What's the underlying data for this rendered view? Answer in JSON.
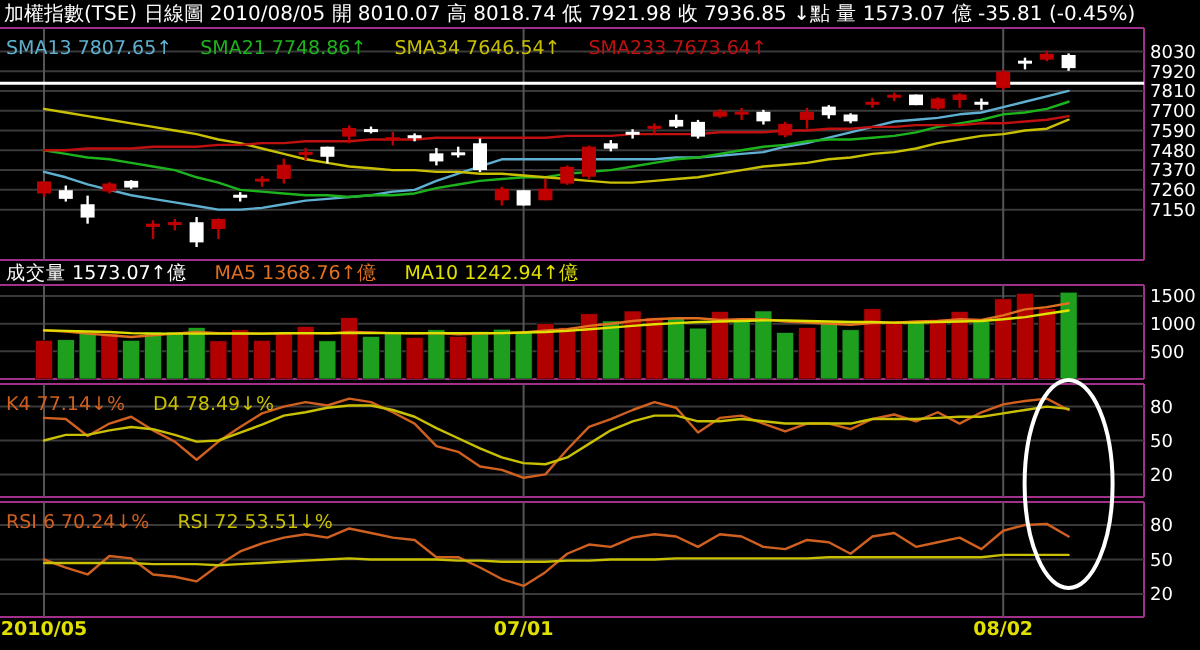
{
  "chart_data": [
    {
      "type": "candlestick",
      "title": "加權指數(TSE) 日線圖 2010/08/05 開 8010.07 高 8018.74 低 7921.98 收 7936.85 ↓點 量 1573.07 億 -35.81 (-0.45%)",
      "categories": [
        null,
        null,
        null,
        null,
        null,
        null,
        null,
        null,
        null,
        null,
        null,
        null,
        null,
        null,
        null,
        null,
        null,
        null,
        null,
        null,
        null,
        null,
        null,
        null,
        null,
        null,
        null,
        null,
        null,
        null,
        null,
        null,
        null,
        null,
        null,
        null,
        null,
        null,
        null,
        null,
        null,
        null,
        null,
        null,
        null,
        null,
        null,
        null
      ],
      "ohlc": [
        [
          7240,
          7307,
          7221,
          7307
        ],
        [
          7258,
          7284,
          7195,
          7210
        ],
        [
          7180,
          7228,
          7072,
          7106
        ],
        [
          7251,
          7303,
          7240,
          7295
        ],
        [
          7310,
          7314,
          7266,
          7273
        ],
        [
          7054,
          7091,
          6987,
          7072
        ],
        [
          7065,
          7098,
          7035,
          7080
        ],
        [
          7080,
          7109,
          6942,
          6968
        ],
        [
          7042,
          7102,
          6987,
          7098
        ],
        [
          7232,
          7247,
          7195,
          7217
        ],
        [
          7307,
          7336,
          7277,
          7321
        ],
        [
          7321,
          7433,
          7295,
          7400
        ],
        [
          7455,
          7493,
          7425,
          7470
        ],
        [
          7500,
          7500,
          7407,
          7444
        ],
        [
          7556,
          7619,
          7519,
          7604
        ],
        [
          7597,
          7612,
          7574,
          7582
        ],
        [
          7537,
          7582,
          7507,
          7552
        ],
        [
          7563,
          7574,
          7530,
          7548
        ],
        [
          7463,
          7493,
          7396,
          7418
        ],
        [
          7466,
          7500,
          7440,
          7455
        ],
        [
          7519,
          7545,
          7359,
          7370
        ],
        [
          7202,
          7277,
          7173,
          7266
        ],
        [
          7258,
          7258,
          7173,
          7173
        ],
        [
          7202,
          7321,
          7202,
          7266
        ],
        [
          7295,
          7396,
          7288,
          7388
        ],
        [
          7333,
          7507,
          7321,
          7500
        ],
        [
          7519,
          7537,
          7474,
          7489
        ],
        [
          7582,
          7597,
          7545,
          7567
        ],
        [
          7600,
          7630,
          7567,
          7615
        ],
        [
          7649,
          7679,
          7604,
          7612
        ],
        [
          7638,
          7649,
          7545,
          7556
        ],
        [
          7667,
          7709,
          7660,
          7697
        ],
        [
          7679,
          7716,
          7649,
          7694
        ],
        [
          7694,
          7705,
          7623,
          7641
        ],
        [
          7563,
          7638,
          7552,
          7627
        ],
        [
          7649,
          7716,
          7600,
          7694
        ],
        [
          7723,
          7731,
          7656,
          7675
        ],
        [
          7679,
          7686,
          7630,
          7641
        ],
        [
          7734,
          7772,
          7716,
          7749
        ],
        [
          7775,
          7801,
          7753,
          7786
        ],
        [
          7790,
          7790,
          7731,
          7731
        ],
        [
          7712,
          7775,
          7705,
          7768
        ],
        [
          7760,
          7798,
          7716,
          7790
        ],
        [
          7749,
          7768,
          7705,
          7734
        ],
        [
          7827,
          7928,
          7816,
          7917
        ],
        [
          7975,
          7995,
          7930,
          7965
        ],
        [
          7984,
          8035,
          7975,
          8017
        ],
        [
          8010.07,
          8018.74,
          7921.98,
          7936.85
        ]
      ],
      "colors": [
        "#c00000",
        "#ffffff",
        "#ffffff",
        "#c00000",
        "#ffffff",
        "#c00000",
        "#c00000",
        "#ffffff",
        "#c00000",
        "#ffffff",
        "#c00000",
        "#c00000",
        "#c00000",
        "#ffffff",
        "#c00000",
        "#ffffff",
        "#c00000",
        "#ffffff",
        "#ffffff",
        "#ffffff",
        "#ffffff",
        "#c00000",
        "#ffffff",
        "#c00000",
        "#c00000",
        "#c00000",
        "#ffffff",
        "#ffffff",
        "#c00000",
        "#ffffff",
        "#ffffff",
        "#c00000",
        "#c00000",
        "#ffffff",
        "#c00000",
        "#c00000",
        "#ffffff",
        "#ffffff",
        "#c00000",
        "#c00000",
        "#ffffff",
        "#c00000",
        "#c00000",
        "#ffffff",
        "#c00000",
        "#ffffff",
        "#c00000",
        "#ffffff"
      ],
      "series": [
        {
          "name": "SMA13 7807.65↑",
          "type": "line",
          "color": "#5fb0d0",
          "values": [
            7360,
            7330,
            7290,
            7260,
            7230,
            7210,
            7190,
            7170,
            7150,
            7150,
            7160,
            7180,
            7200,
            7210,
            7220,
            7230,
            7250,
            7260,
            7310,
            7350,
            7390,
            7430,
            7430,
            7430,
            7430,
            7430,
            7430,
            7430,
            7430,
            7440,
            7440,
            7450,
            7460,
            7470,
            7500,
            7520,
            7550,
            7580,
            7610,
            7640,
            7650,
            7660,
            7680,
            7690,
            7720,
            7750,
            7780,
            7810
          ]
        },
        {
          "name": "SMA21 7748.86↑",
          "type": "line",
          "color": "#1db31d",
          "values": [
            7480,
            7460,
            7440,
            7430,
            7410,
            7390,
            7370,
            7330,
            7300,
            7260,
            7250,
            7240,
            7230,
            7230,
            7220,
            7230,
            7230,
            7240,
            7270,
            7290,
            7310,
            7320,
            7330,
            7330,
            7350,
            7360,
            7370,
            7390,
            7410,
            7430,
            7440,
            7460,
            7480,
            7500,
            7510,
            7530,
            7540,
            7540,
            7550,
            7560,
            7580,
            7610,
            7630,
            7650,
            7680,
            7690,
            7710,
            7750
          ]
        },
        {
          "name": "SMA34 7646.54↑",
          "type": "line",
          "color": "#c8c000",
          "values": [
            7710,
            7690,
            7670,
            7650,
            7630,
            7610,
            7590,
            7570,
            7540,
            7520,
            7490,
            7460,
            7430,
            7410,
            7390,
            7380,
            7370,
            7370,
            7360,
            7360,
            7350,
            7350,
            7340,
            7330,
            7320,
            7310,
            7300,
            7300,
            7310,
            7320,
            7330,
            7350,
            7370,
            7390,
            7400,
            7410,
            7430,
            7440,
            7460,
            7470,
            7490,
            7520,
            7540,
            7560,
            7570,
            7590,
            7600,
            7650
          ]
        },
        {
          "name": "SMA233 7673.64↑",
          "type": "line",
          "color": "#c01010",
          "values": [
            7480,
            7480,
            7490,
            7490,
            7490,
            7500,
            7500,
            7500,
            7510,
            7510,
            7520,
            7520,
            7530,
            7530,
            7530,
            7540,
            7540,
            7540,
            7550,
            7550,
            7550,
            7550,
            7550,
            7550,
            7560,
            7560,
            7560,
            7570,
            7570,
            7570,
            7570,
            7580,
            7580,
            7580,
            7590,
            7590,
            7600,
            7600,
            7610,
            7610,
            7620,
            7620,
            7620,
            7630,
            7630,
            7640,
            7650,
            7670
          ]
        }
      ],
      "ref_lines": [
        {
          "axis": "y",
          "value": 7853,
          "color": "#ffffff"
        }
      ],
      "ylim": [
        6870,
        8160
      ],
      "yticks": [
        7150,
        7260,
        7370,
        7480,
        7590,
        7700,
        7810,
        7920,
        8030
      ],
      "grid": true,
      "legend": "top left",
      "tick_labels": "y"
    },
    {
      "type": "bar",
      "categories": [
        null,
        null,
        null,
        null,
        null,
        null,
        null,
        null,
        null,
        null,
        null,
        null,
        null,
        null,
        null,
        null,
        null,
        null,
        null,
        null,
        null,
        null,
        null,
        null,
        null,
        null,
        null,
        null,
        null,
        null,
        null,
        null,
        null,
        null,
        null,
        null,
        null,
        null,
        null,
        null,
        null,
        null,
        null,
        null,
        null,
        null,
        null,
        null
      ],
      "series": [
        {
          "name": "成交量 1573.07↑億",
          "type": "bar",
          "values": [
            700,
            710,
            820,
            820,
            700,
            850,
            850,
            930,
            690,
            890,
            700,
            820,
            950,
            690,
            1110,
            770,
            840,
            750,
            890,
            770,
            860,
            900,
            850,
            1000,
            930,
            1180,
            1050,
            1230,
            1110,
            1110,
            920,
            1220,
            1070,
            1230,
            840,
            930,
            1030,
            890,
            1270,
            1040,
            1040,
            1080,
            1220,
            1040,
            1450,
            1550,
            1270,
            1570
          ],
          "colors": [
            "#b00000",
            "#1ea01e",
            "#1ea01e",
            "#b00000",
            "#1ea01e",
            "#1ea01e",
            "#1ea01e",
            "#1ea01e",
            "#b00000",
            "#b00000",
            "#b00000",
            "#b00000",
            "#b00000",
            "#1ea01e",
            "#b00000",
            "#1ea01e",
            "#1ea01e",
            "#b00000",
            "#1ea01e",
            "#b00000",
            "#1ea01e",
            "#1ea01e",
            "#1ea01e",
            "#b00000",
            "#b00000",
            "#b00000",
            "#1ea01e",
            "#b00000",
            "#b00000",
            "#1ea01e",
            "#1ea01e",
            "#b00000",
            "#1ea01e",
            "#1ea01e",
            "#1ea01e",
            "#b00000",
            "#1ea01e",
            "#1ea01e",
            "#b00000",
            "#b00000",
            "#1ea01e",
            "#b00000",
            "#b00000",
            "#1ea01e",
            "#b00000",
            "#b00000",
            "#b00000",
            "#1ea01e"
          ]
        },
        {
          "name": "MA5 1368.76↑億",
          "type": "line",
          "color": "#e07020",
          "values": [
            880,
            860,
            820,
            790,
            760,
            790,
            820,
            850,
            830,
            830,
            820,
            820,
            830,
            820,
            850,
            840,
            830,
            820,
            830,
            810,
            820,
            830,
            840,
            880,
            900,
            960,
            1000,
            1050,
            1080,
            1100,
            1100,
            1070,
            1080,
            1080,
            1040,
            1020,
            1000,
            980,
            1010,
            1020,
            1040,
            1050,
            1080,
            1070,
            1150,
            1260,
            1300,
            1370
          ]
        },
        {
          "name": "MA10 1242.94↑億",
          "type": "line",
          "color": "#e0e000",
          "values": [
            880,
            870,
            860,
            850,
            830,
            820,
            820,
            820,
            820,
            820,
            820,
            830,
            830,
            830,
            830,
            830,
            830,
            830,
            830,
            830,
            830,
            830,
            840,
            850,
            870,
            900,
            930,
            960,
            990,
            1010,
            1030,
            1040,
            1050,
            1060,
            1060,
            1050,
            1040,
            1030,
            1030,
            1020,
            1020,
            1030,
            1040,
            1050,
            1080,
            1120,
            1180,
            1240
          ]
        }
      ],
      "ylim": [
        0,
        1700
      ],
      "yticks": [
        500,
        1000,
        1500
      ],
      "grid": true,
      "legend": "top left",
      "tick_labels": "y"
    },
    {
      "type": "line",
      "categories": [
        null,
        null,
        null,
        null,
        null,
        null,
        null,
        null,
        null,
        null,
        null,
        null,
        null,
        null,
        null,
        null,
        null,
        null,
        null,
        null,
        null,
        null,
        null,
        null,
        null,
        null,
        null,
        null,
        null,
        null,
        null,
        null,
        null,
        null,
        null,
        null,
        null,
        null,
        null,
        null,
        null,
        null,
        null,
        null,
        null,
        null,
        null,
        null
      ],
      "series": [
        {
          "name": "K4 77.14↓%",
          "color": "#d06020",
          "values": [
            70,
            69,
            54,
            65,
            71,
            59,
            49,
            33,
            49,
            62,
            74,
            80,
            84,
            81,
            87,
            84,
            75,
            65,
            45,
            40,
            27,
            24,
            17,
            20,
            42,
            62,
            69,
            77,
            84,
            79,
            57,
            70,
            72,
            65,
            58,
            65,
            65,
            60,
            69,
            73,
            67,
            75,
            65,
            75,
            82,
            85,
            87,
            77
          ]
        },
        {
          "name": "D4 78.49↓%",
          "color": "#c8c000",
          "values": [
            50,
            55,
            55,
            59,
            62,
            60,
            55,
            49,
            50,
            57,
            64,
            72,
            75,
            79,
            81,
            81,
            77,
            71,
            61,
            52,
            43,
            35,
            30,
            29,
            35,
            47,
            59,
            67,
            72,
            72,
            67,
            67,
            69,
            67,
            65,
            65,
            65,
            65,
            69,
            69,
            69,
            70,
            71,
            71,
            74,
            77,
            80,
            78
          ]
        }
      ],
      "ylim": [
        0,
        100
      ],
      "yticks": [
        20,
        50,
        80
      ],
      "grid": true,
      "legend": "top left",
      "tick_labels": "y"
    },
    {
      "type": "line",
      "categories": [
        "2010/05",
        null,
        null,
        null,
        null,
        null,
        null,
        null,
        null,
        null,
        null,
        null,
        null,
        null,
        null,
        null,
        null,
        null,
        null,
        null,
        null,
        null,
        "07/01",
        null,
        null,
        null,
        null,
        null,
        null,
        null,
        null,
        null,
        null,
        null,
        null,
        null,
        null,
        null,
        null,
        null,
        null,
        null,
        null,
        null,
        "08/02",
        null,
        null,
        null
      ],
      "series": [
        {
          "name": "RSI 6 70.24↓%",
          "color": "#d06020",
          "values": [
            50,
            43,
            37,
            53,
            51,
            37,
            35,
            31,
            45,
            57,
            64,
            69,
            72,
            69,
            77,
            73,
            69,
            67,
            52,
            52,
            43,
            33,
            27,
            39,
            55,
            63,
            61,
            69,
            72,
            70,
            61,
            72,
            70,
            61,
            59,
            67,
            65,
            55,
            70,
            73,
            61,
            65,
            69,
            59,
            75,
            80,
            81,
            70
          ]
        },
        {
          "name": "RSI 72 53.51↓%",
          "color": "#c8c000",
          "values": [
            47,
            47,
            47,
            47,
            47,
            46,
            46,
            46,
            45,
            46,
            47,
            48,
            49,
            50,
            51,
            50,
            50,
            50,
            50,
            49,
            49,
            48,
            48,
            48,
            49,
            49,
            50,
            50,
            50,
            51,
            51,
            51,
            51,
            51,
            51,
            51,
            52,
            52,
            52,
            52,
            52,
            52,
            52,
            52,
            54,
            54,
            54,
            54
          ]
        }
      ],
      "ylim": [
        0,
        100
      ],
      "yticks": [
        20,
        50,
        80
      ],
      "grid": true,
      "legend": "top left"
    }
  ]
}
